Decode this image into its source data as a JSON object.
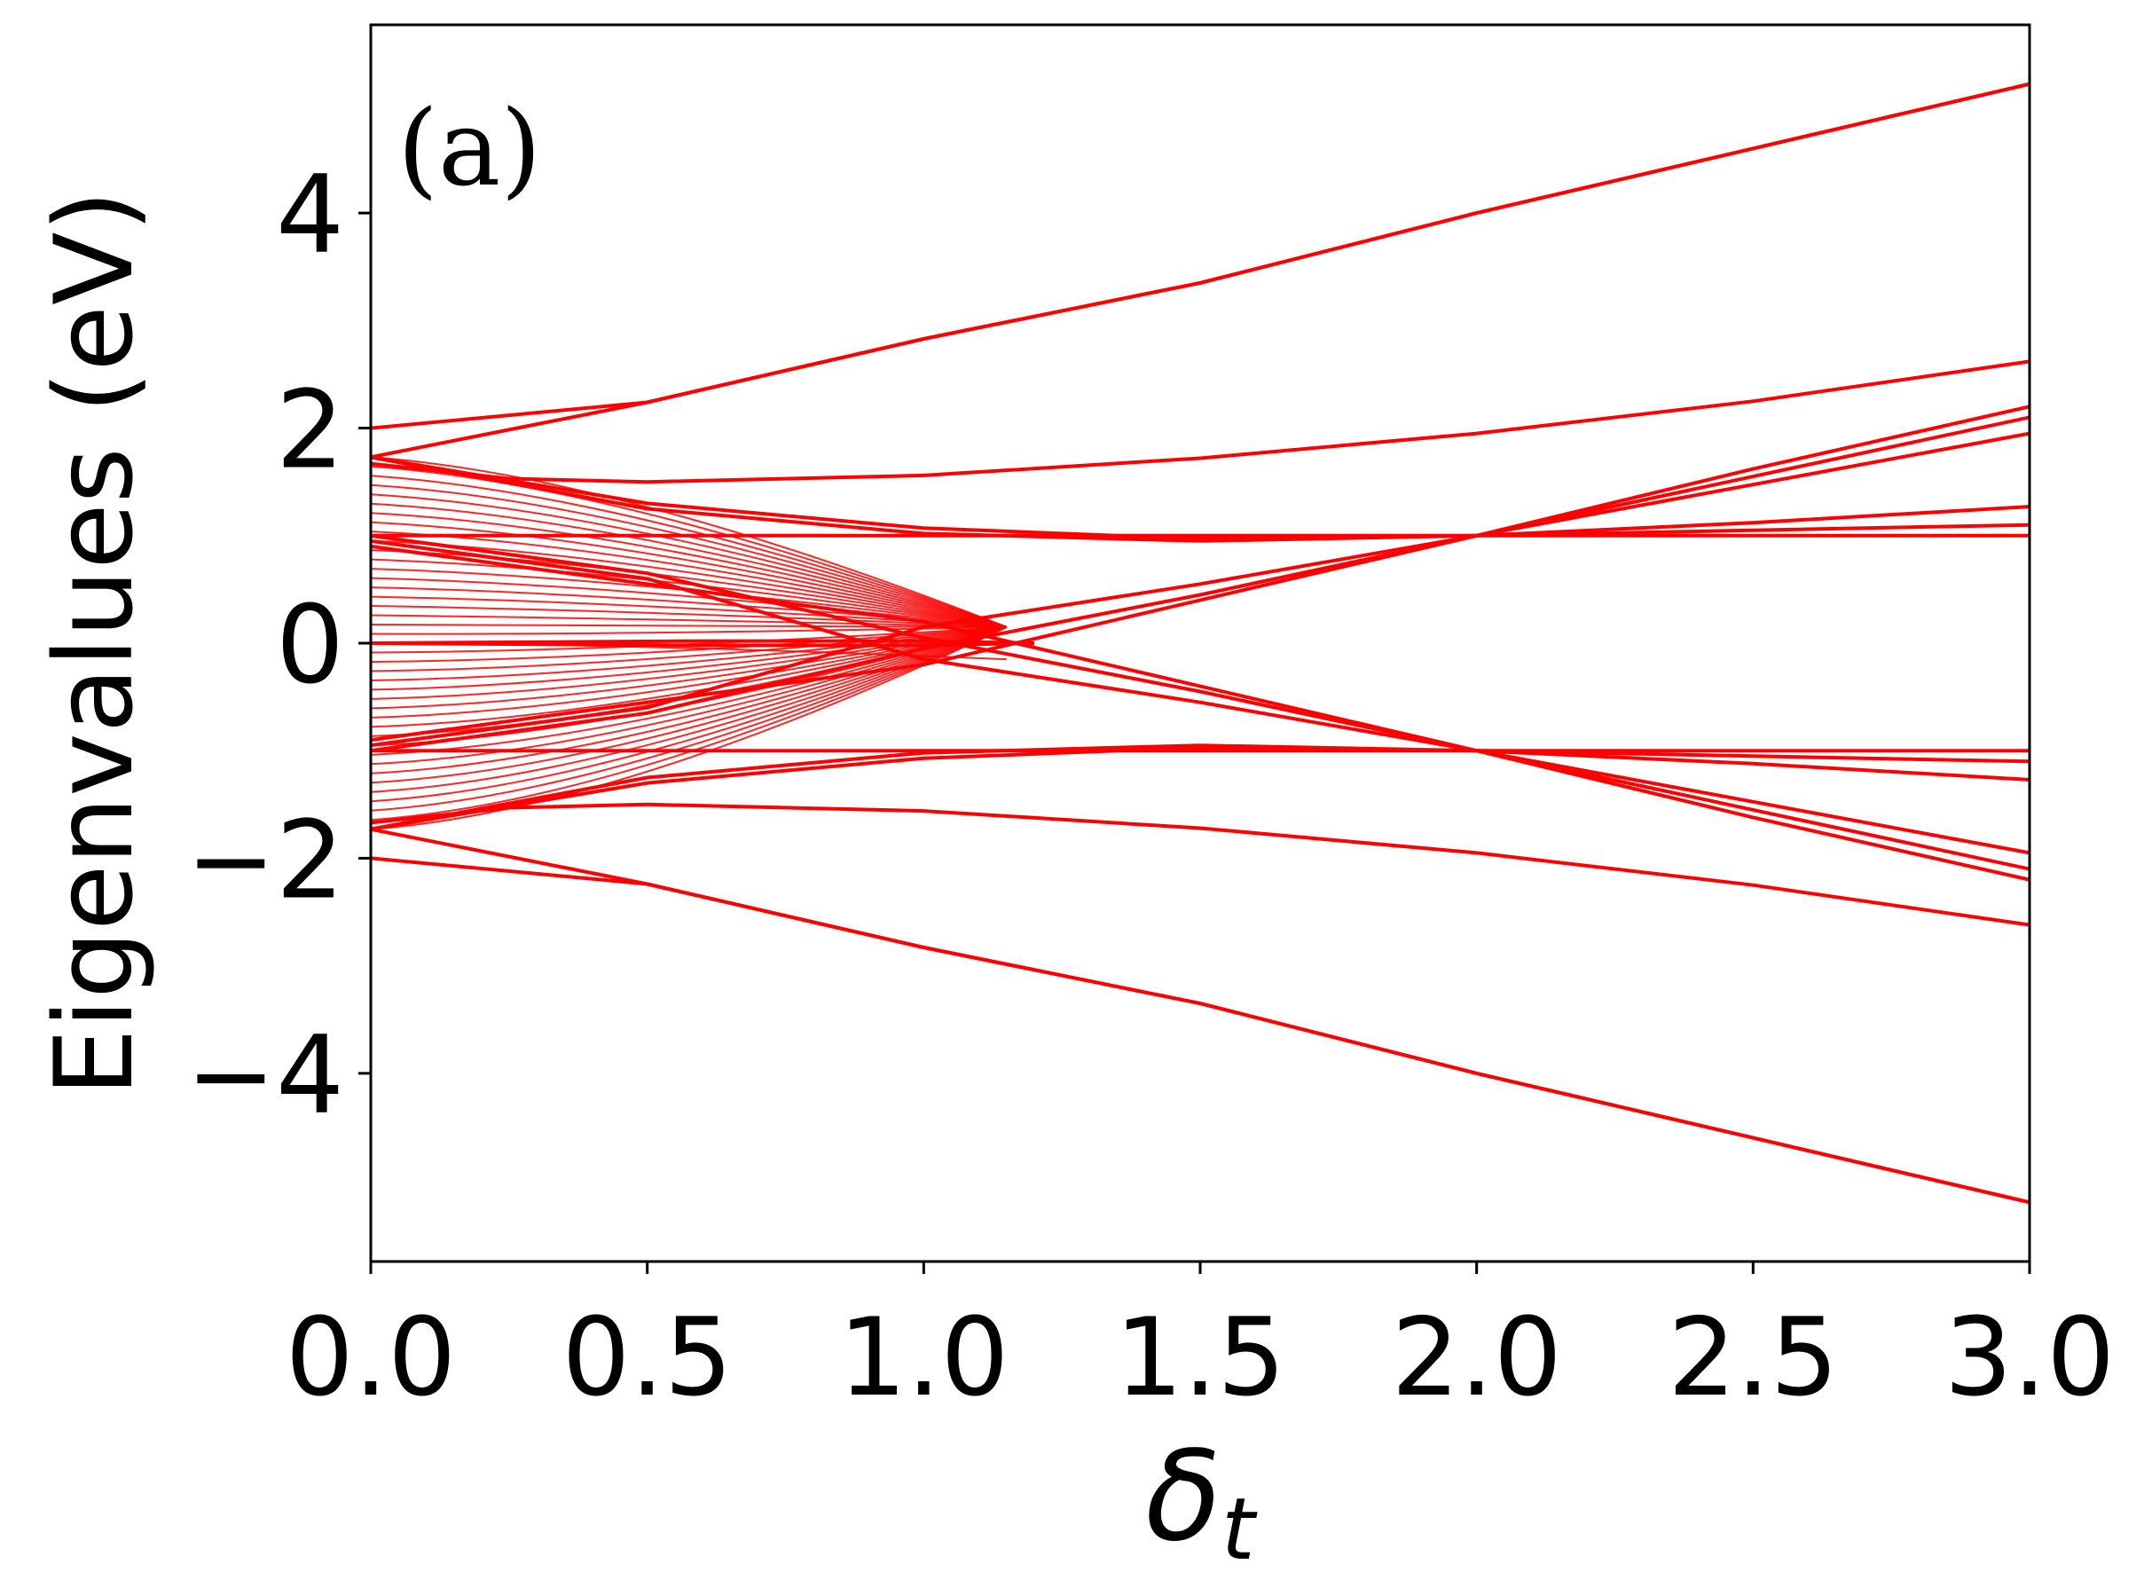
{
  "chart_data": {
    "type": "line",
    "panel_label": "(a)",
    "xlabel": {
      "symbol": "δ",
      "subscript": "t"
    },
    "ylabel": "Eigenvalues (eV)",
    "xlim": [
      0.0,
      3.0
    ],
    "ylim": [
      -5.75,
      5.75
    ],
    "x_ticks": [
      0.0,
      0.5,
      1.0,
      1.5,
      2.0,
      2.5,
      3.0
    ],
    "x_tick_labels": [
      "0.0",
      "0.5",
      "1.0",
      "1.5",
      "2.0",
      "2.5",
      "3.0"
    ],
    "y_ticks": [
      -4,
      -2,
      0,
      2,
      4
    ],
    "y_tick_labels": [
      "−4",
      "−2",
      "0",
      "2",
      "4"
    ],
    "grid": false,
    "line_color": "#ff0000",
    "series": [
      {
        "x": [
          0.0,
          0.5,
          1.0,
          1.5,
          2.0,
          2.5,
          3.0
        ],
        "values": [
          2.0,
          2.24,
          2.83,
          3.35,
          4.0,
          4.6,
          5.2
        ]
      },
      {
        "x": [
          0.0,
          0.5,
          1.0,
          1.5,
          2.0,
          2.5,
          3.0
        ],
        "values": [
          1.73,
          2.24,
          2.83,
          3.35,
          4.0,
          4.6,
          5.2
        ]
      },
      {
        "x": [
          0.0,
          0.5,
          1.0,
          1.5,
          2.0,
          2.5,
          3.0
        ],
        "values": [
          -2.0,
          -2.24,
          -2.83,
          -3.35,
          -4.0,
          -4.6,
          -5.2
        ]
      },
      {
        "x": [
          0.0,
          0.5,
          1.0,
          1.5,
          2.0,
          2.5,
          3.0
        ],
        "values": [
          -1.73,
          -2.24,
          -2.83,
          -3.35,
          -4.0,
          -4.6,
          -5.2
        ]
      },
      {
        "x": [
          0.0,
          0.25,
          0.5,
          1.0,
          1.5,
          2.0,
          2.5,
          3.0
        ],
        "values": [
          1.67,
          1.53,
          1.5,
          1.56,
          1.72,
          1.95,
          2.25,
          2.62
        ]
      },
      {
        "x": [
          0.0,
          0.25,
          0.5,
          1.0,
          1.5,
          2.0,
          2.5,
          3.0
        ],
        "values": [
          -1.67,
          -1.53,
          -1.5,
          -1.56,
          -1.72,
          -1.95,
          -2.25,
          -2.62
        ]
      },
      {
        "x": [
          0.0,
          0.5,
          1.0,
          1.5,
          2.0,
          2.5,
          3.0
        ],
        "values": [
          1.73,
          1.3,
          1.07,
          0.97,
          1.0,
          1.05,
          1.1
        ]
      },
      {
        "x": [
          0.0,
          0.5,
          1.0,
          1.5,
          2.0,
          2.5,
          3.0
        ],
        "values": [
          1.73,
          1.25,
          1.02,
          0.95,
          1.0,
          1.12,
          1.27
        ]
      },
      {
        "x": [
          0.0,
          1.0,
          2.0,
          3.0
        ],
        "values": [
          1.0,
          1.0,
          1.0,
          1.0
        ]
      },
      {
        "x": [
          0.0,
          0.5,
          1.0,
          1.5,
          2.0,
          2.5,
          3.0
        ],
        "values": [
          -1.73,
          -1.3,
          -1.07,
          -0.97,
          -1.0,
          -1.05,
          -1.1
        ]
      },
      {
        "x": [
          0.0,
          0.5,
          1.0,
          1.5,
          2.0,
          2.5,
          3.0
        ],
        "values": [
          -1.73,
          -1.25,
          -1.02,
          -0.95,
          -1.0,
          -1.12,
          -1.27
        ]
      },
      {
        "x": [
          0.0,
          1.0,
          2.0,
          3.0
        ],
        "values": [
          -1.0,
          -1.0,
          -1.0,
          -1.0
        ]
      },
      {
        "x": [
          0.0,
          0.5,
          1.0,
          1.5,
          2.0,
          2.5,
          3.0
        ],
        "values": [
          1.0,
          0.65,
          0.05,
          -0.45,
          -1.0,
          -1.55,
          -2.1
        ]
      },
      {
        "x": [
          0.0,
          0.5,
          1.0,
          1.5,
          2.0,
          2.5,
          3.0
        ],
        "values": [
          0.95,
          0.6,
          -0.15,
          -0.55,
          -1.0,
          -1.62,
          -2.2
        ]
      },
      {
        "x": [
          0.0,
          1.0,
          2.0,
          3.0
        ],
        "values": [
          0.9,
          0.2,
          -1.0,
          -1.95
        ]
      },
      {
        "x": [
          0.0,
          0.5,
          1.0,
          1.5,
          2.0,
          2.5,
          3.0
        ],
        "values": [
          -1.0,
          -0.65,
          -0.05,
          0.45,
          1.0,
          1.55,
          2.1
        ]
      },
      {
        "x": [
          0.0,
          0.5,
          1.0,
          1.5,
          2.0,
          2.5,
          3.0
        ],
        "values": [
          -0.95,
          -0.6,
          0.15,
          0.55,
          1.0,
          1.62,
          2.2
        ]
      },
      {
        "x": [
          0.0,
          1.0,
          2.0,
          3.0
        ],
        "values": [
          -0.9,
          -0.2,
          1.0,
          1.95
        ]
      },
      {
        "x": [
          0.0,
          0.6,
          1.0,
          1.2
        ],
        "values": [
          0.0,
          0.02,
          0.02,
          0.0
        ]
      },
      {
        "x": [
          0.0,
          0.6,
          1.0,
          1.2
        ],
        "values": [
          0.0,
          -0.02,
          -0.02,
          0.0
        ]
      }
    ]
  }
}
